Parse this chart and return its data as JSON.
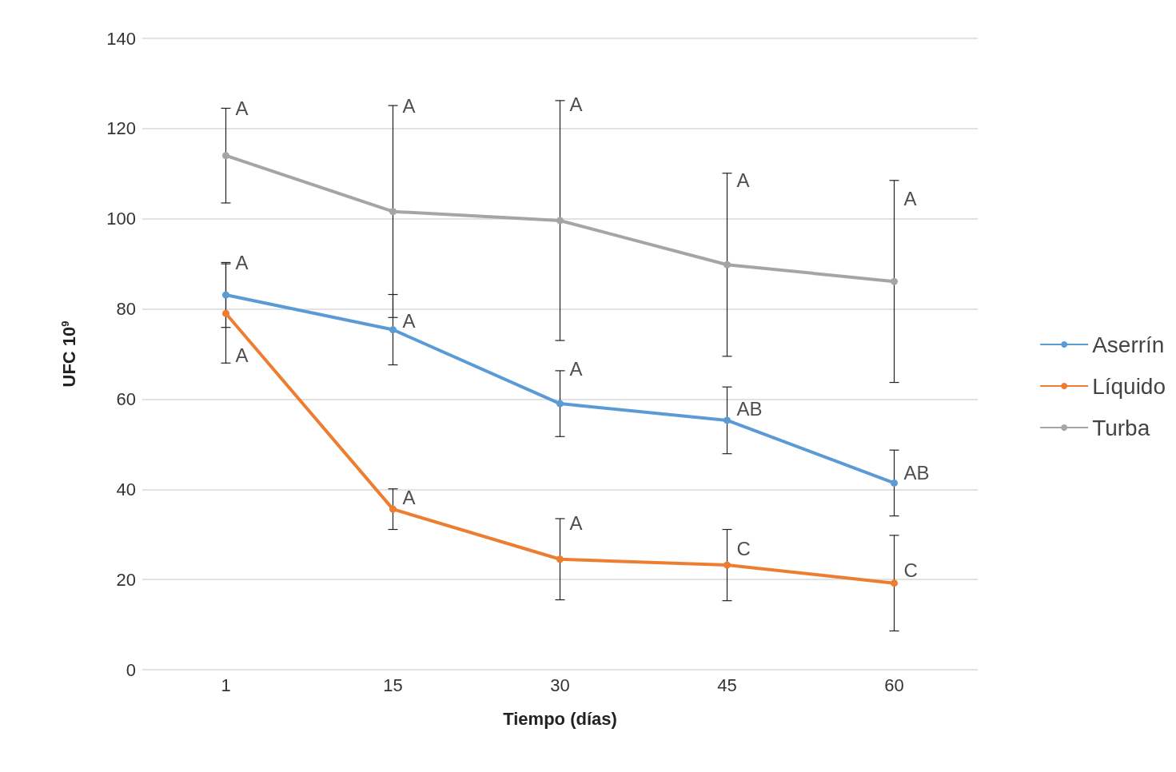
{
  "chart_data": {
    "type": "line",
    "xlabel": "Tiempo (días)",
    "ylabel": "UFC 10$^{9}$",
    "categories": [
      "1",
      "15",
      "30",
      "45",
      "60"
    ],
    "series": [
      {
        "name": "Aserrín",
        "color": "#5b9bd5",
        "values": [
          83.1,
          75.4,
          59,
          55.3,
          41.4
        ],
        "errors": [
          7.2,
          7.8,
          7.3,
          7.4,
          7.3
        ]
      },
      {
        "name": "Líquido",
        "color": "#ed7d31",
        "values": [
          79,
          35.6,
          24.5,
          23.2,
          19.2
        ],
        "errors": [
          11,
          4.5,
          9,
          7.9,
          10.6
        ]
      },
      {
        "name": "Turba",
        "color": "#a5a5a5",
        "values": [
          114,
          101.6,
          99.6,
          89.8,
          86.1
        ],
        "errors": [
          10.5,
          23.5,
          26.6,
          20.3,
          22.4
        ]
      }
    ],
    "ylim": [
      0,
      140
    ],
    "yticks": [
      0,
      20,
      40,
      60,
      80,
      100,
      120,
      140
    ],
    "grid": "y",
    "legend": "right",
    "marker": "circle",
    "line_style": "solid",
    "annotations": [
      {
        "text": "A",
        "x": "1",
        "y": 124.5
      },
      {
        "text": "A",
        "x": "15",
        "y": 125.1
      },
      {
        "text": "A",
        "x": "30",
        "y": 125.4
      },
      {
        "text": "A",
        "x": "45",
        "y": 108.5
      },
      {
        "text": "A",
        "x": "60",
        "y": 104.4
      },
      {
        "text": "A",
        "x": "1",
        "y": 90.3
      },
      {
        "text": "A",
        "x": "15",
        "y": 77.3
      },
      {
        "text": "A",
        "x": "30",
        "y": 66.7
      },
      {
        "text": "AB",
        "x": "45",
        "y": 57.9
      },
      {
        "text": "AB",
        "x": "60",
        "y": 43.7
      },
      {
        "text": "A",
        "x": "1",
        "y": 69.7
      },
      {
        "text": "A",
        "x": "15",
        "y": 38.2
      },
      {
        "text": "A",
        "x": "30",
        "y": 32.6
      },
      {
        "text": "C",
        "x": "45",
        "y": 26.9
      },
      {
        "text": "C",
        "x": "60",
        "y": 22
      }
    ]
  }
}
